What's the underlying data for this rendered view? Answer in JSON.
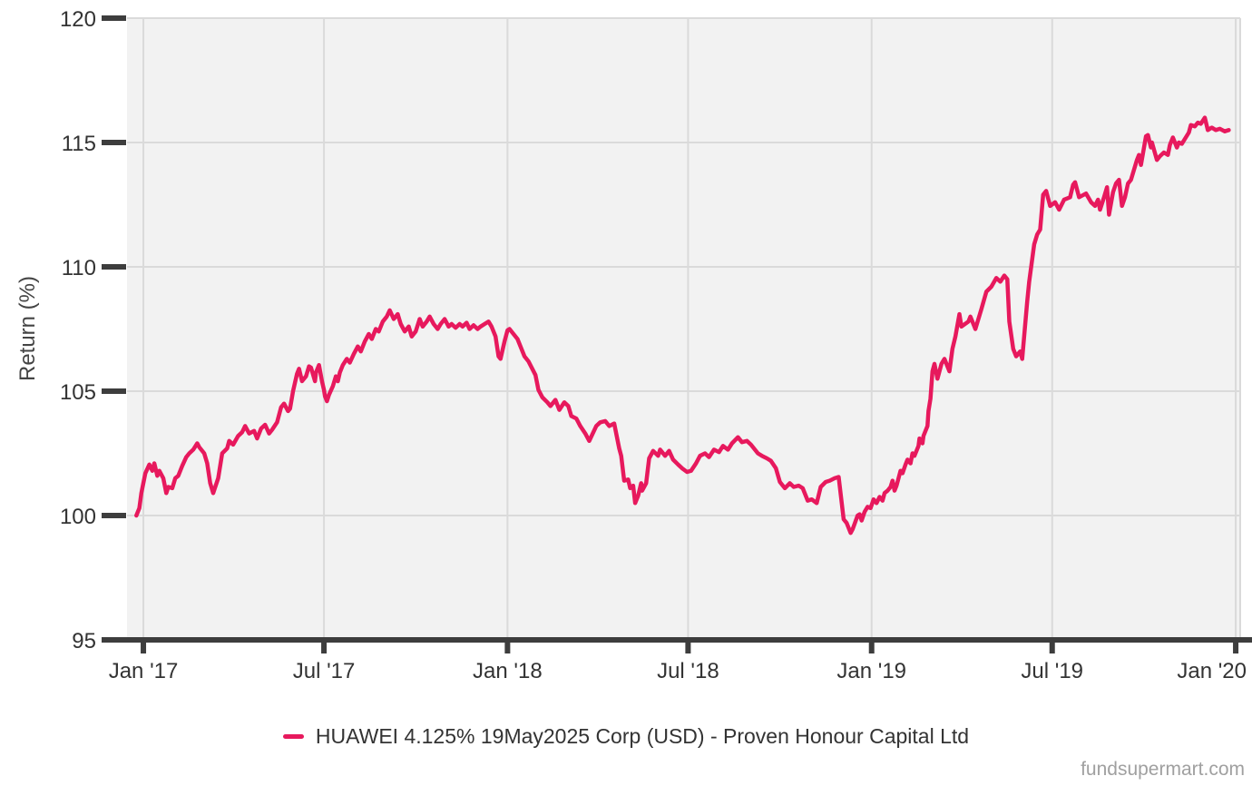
{
  "watermark": "fundsupermart.com",
  "chart_data": {
    "type": "line",
    "title": "",
    "xlabel": "",
    "ylabel": "Return (%)",
    "grid": true,
    "legend_position": "bottom-center",
    "x_unit": "days since 2017-01-01",
    "xlim_days": [
      -16.4,
      1099.5
    ],
    "ylim": [
      95,
      120
    ],
    "y_ticks": [
      95,
      100,
      105,
      110,
      115,
      120
    ],
    "x_ticks": [
      {
        "day": 0,
        "label": "Jan '17"
      },
      {
        "day": 181,
        "label": "Jul '17"
      },
      {
        "day": 365,
        "label": "Jan '18"
      },
      {
        "day": 546,
        "label": "Jul '18"
      },
      {
        "day": 730,
        "label": "Jan '19"
      },
      {
        "day": 911,
        "label": "Jul '19"
      },
      {
        "day": 1095,
        "label": "Jan '20"
      }
    ],
    "colors": {
      "line": "#e7195d",
      "plot_background": "#f2f2f2",
      "grid": "#dadada",
      "axis": "#3d3d3d",
      "tick_label": "#333333",
      "axis_title": "#444444",
      "watermark": "#a0a0a0"
    },
    "series": [
      {
        "name": "HUAWEI 4.125% 19May2025 Corp (USD) - Proven Honour Capital Ltd",
        "color": "#e7195d",
        "points": [
          [
            -7,
            100.0
          ],
          [
            -4,
            100.3
          ],
          [
            -2,
            100.9
          ],
          [
            2,
            101.7
          ],
          [
            6,
            102.05
          ],
          [
            9,
            101.8
          ],
          [
            11,
            102.1
          ],
          [
            14,
            101.6
          ],
          [
            16,
            101.8
          ],
          [
            20,
            101.5
          ],
          [
            23,
            100.9
          ],
          [
            25,
            101.15
          ],
          [
            29,
            101.1
          ],
          [
            32,
            101.5
          ],
          [
            35,
            101.6
          ],
          [
            39,
            102.0
          ],
          [
            43,
            102.35
          ],
          [
            46,
            102.5
          ],
          [
            50,
            102.65
          ],
          [
            54,
            102.9
          ],
          [
            56,
            102.75
          ],
          [
            61,
            102.5
          ],
          [
            64,
            102.1
          ],
          [
            67,
            101.3
          ],
          [
            70,
            100.9
          ],
          [
            75,
            101.5
          ],
          [
            79,
            102.5
          ],
          [
            84,
            102.7
          ],
          [
            86,
            103.0
          ],
          [
            90,
            102.85
          ],
          [
            95,
            103.2
          ],
          [
            99,
            103.35
          ],
          [
            102,
            103.6
          ],
          [
            106,
            103.3
          ],
          [
            111,
            103.4
          ],
          [
            114,
            103.1
          ],
          [
            118,
            103.5
          ],
          [
            122,
            103.65
          ],
          [
            126,
            103.3
          ],
          [
            129,
            103.45
          ],
          [
            134,
            103.75
          ],
          [
            138,
            104.35
          ],
          [
            141,
            104.5
          ],
          [
            145,
            104.2
          ],
          [
            147,
            104.3
          ],
          [
            150,
            105.0
          ],
          [
            154,
            105.7
          ],
          [
            156,
            105.9
          ],
          [
            159,
            105.4
          ],
          [
            163,
            105.6
          ],
          [
            166,
            106.0
          ],
          [
            168,
            105.95
          ],
          [
            172,
            105.4
          ],
          [
            173,
            105.75
          ],
          [
            176,
            106.05
          ],
          [
            179,
            105.4
          ],
          [
            181,
            105.05
          ],
          [
            182,
            104.8
          ],
          [
            184,
            104.6
          ],
          [
            186,
            104.85
          ],
          [
            190,
            105.2
          ],
          [
            193,
            105.6
          ],
          [
            195,
            105.4
          ],
          [
            197,
            105.75
          ],
          [
            200,
            106.05
          ],
          [
            204,
            106.3
          ],
          [
            207,
            106.15
          ],
          [
            211,
            106.5
          ],
          [
            215,
            106.8
          ],
          [
            218,
            106.6
          ],
          [
            222,
            107.0
          ],
          [
            226,
            107.3
          ],
          [
            229,
            107.1
          ],
          [
            233,
            107.5
          ],
          [
            236,
            107.4
          ],
          [
            240,
            107.8
          ],
          [
            244,
            108.0
          ],
          [
            247,
            108.25
          ],
          [
            251,
            107.9
          ],
          [
            255,
            108.1
          ],
          [
            258,
            107.7
          ],
          [
            262,
            107.4
          ],
          [
            266,
            107.6
          ],
          [
            269,
            107.2
          ],
          [
            273,
            107.4
          ],
          [
            277,
            107.9
          ],
          [
            280,
            107.6
          ],
          [
            284,
            107.8
          ],
          [
            287,
            108.0
          ],
          [
            291,
            107.7
          ],
          [
            295,
            107.5
          ],
          [
            298,
            107.7
          ],
          [
            302,
            107.9
          ],
          [
            306,
            107.6
          ],
          [
            309,
            107.7
          ],
          [
            313,
            107.55
          ],
          [
            317,
            107.7
          ],
          [
            320,
            107.6
          ],
          [
            324,
            107.75
          ],
          [
            327,
            107.5
          ],
          [
            331,
            107.65
          ],
          [
            335,
            107.5
          ],
          [
            338,
            107.6
          ],
          [
            342,
            107.7
          ],
          [
            346,
            107.8
          ],
          [
            349,
            107.6
          ],
          [
            353,
            107.2
          ],
          [
            356,
            106.4
          ],
          [
            358,
            106.3
          ],
          [
            362,
            107.0
          ],
          [
            365,
            107.45
          ],
          [
            367,
            107.5
          ],
          [
            375,
            107.1
          ],
          [
            382,
            106.4
          ],
          [
            386,
            106.2
          ],
          [
            393,
            105.65
          ],
          [
            396,
            105.05
          ],
          [
            400,
            104.75
          ],
          [
            405,
            104.55
          ],
          [
            408,
            104.4
          ],
          [
            413,
            104.65
          ],
          [
            417,
            104.25
          ],
          [
            422,
            104.55
          ],
          [
            426,
            104.4
          ],
          [
            429,
            104.0
          ],
          [
            434,
            103.9
          ],
          [
            438,
            103.6
          ],
          [
            443,
            103.3
          ],
          [
            447,
            103.0
          ],
          [
            454,
            103.6
          ],
          [
            458,
            103.75
          ],
          [
            463,
            103.8
          ],
          [
            467,
            103.6
          ],
          [
            472,
            103.7
          ],
          [
            477,
            102.7
          ],
          [
            479,
            102.4
          ],
          [
            482,
            101.4
          ],
          [
            486,
            101.45
          ],
          [
            488,
            101.1
          ],
          [
            491,
            101.2
          ],
          [
            493,
            100.5
          ],
          [
            496,
            100.8
          ],
          [
            499,
            101.3
          ],
          [
            500,
            101.0
          ],
          [
            504,
            101.3
          ],
          [
            507,
            102.3
          ],
          [
            511,
            102.6
          ],
          [
            516,
            102.4
          ],
          [
            518,
            102.65
          ],
          [
            523,
            102.4
          ],
          [
            527,
            102.6
          ],
          [
            531,
            102.25
          ],
          [
            536,
            102.05
          ],
          [
            540,
            101.9
          ],
          [
            545,
            101.75
          ],
          [
            549,
            101.8
          ],
          [
            554,
            102.1
          ],
          [
            558,
            102.4
          ],
          [
            563,
            102.5
          ],
          [
            567,
            102.35
          ],
          [
            572,
            102.65
          ],
          [
            577,
            102.55
          ],
          [
            581,
            102.8
          ],
          [
            586,
            102.65
          ],
          [
            590,
            102.9
          ],
          [
            596,
            103.15
          ],
          [
            600,
            102.95
          ],
          [
            605,
            103.0
          ],
          [
            609,
            102.85
          ],
          [
            616,
            102.5
          ],
          [
            620,
            102.4
          ],
          [
            625,
            102.3
          ],
          [
            629,
            102.2
          ],
          [
            634,
            101.9
          ],
          [
            638,
            101.35
          ],
          [
            643,
            101.1
          ],
          [
            648,
            101.3
          ],
          [
            652,
            101.15
          ],
          [
            657,
            101.2
          ],
          [
            661,
            101.1
          ],
          [
            666,
            100.6
          ],
          [
            670,
            100.65
          ],
          [
            675,
            100.5
          ],
          [
            679,
            101.15
          ],
          [
            684,
            101.35
          ],
          [
            688,
            101.4
          ],
          [
            693,
            101.5
          ],
          [
            697,
            101.55
          ],
          [
            702,
            99.85
          ],
          [
            705,
            99.7
          ],
          [
            709,
            99.3
          ],
          [
            711,
            99.45
          ],
          [
            716,
            100.0
          ],
          [
            718,
            100.05
          ],
          [
            720,
            99.8
          ],
          [
            723,
            100.15
          ],
          [
            726,
            100.35
          ],
          [
            729,
            100.3
          ],
          [
            732,
            100.65
          ],
          [
            735,
            100.5
          ],
          [
            738,
            100.75
          ],
          [
            741,
            100.6
          ],
          [
            743,
            100.9
          ],
          [
            746,
            101.0
          ],
          [
            749,
            101.15
          ],
          [
            751,
            101.4
          ],
          [
            753,
            101.0
          ],
          [
            755,
            101.2
          ],
          [
            757,
            101.5
          ],
          [
            759,
            101.8
          ],
          [
            761,
            101.7
          ],
          [
            764,
            102.05
          ],
          [
            766,
            102.25
          ],
          [
            769,
            102.1
          ],
          [
            771,
            102.5
          ],
          [
            773,
            102.4
          ],
          [
            777,
            102.8
          ],
          [
            778,
            103.1
          ],
          [
            781,
            102.9
          ],
          [
            782,
            103.2
          ],
          [
            784,
            103.4
          ],
          [
            786,
            103.6
          ],
          [
            787,
            104.2
          ],
          [
            789,
            104.7
          ],
          [
            791,
            105.8
          ],
          [
            793,
            106.1
          ],
          [
            796,
            105.5
          ],
          [
            800,
            106.1
          ],
          [
            803,
            106.3
          ],
          [
            808,
            105.8
          ],
          [
            811,
            106.7
          ],
          [
            814,
            107.2
          ],
          [
            818,
            108.1
          ],
          [
            820,
            107.6
          ],
          [
            827,
            107.8
          ],
          [
            829,
            108.0
          ],
          [
            834,
            107.5
          ],
          [
            840,
            108.3
          ],
          [
            845,
            109.0
          ],
          [
            850,
            109.2
          ],
          [
            855,
            109.55
          ],
          [
            859,
            109.4
          ],
          [
            863,
            109.65
          ],
          [
            866,
            109.5
          ],
          [
            868,
            107.8
          ],
          [
            872,
            106.7
          ],
          [
            875,
            106.4
          ],
          [
            879,
            106.6
          ],
          [
            881,
            106.3
          ],
          [
            886,
            108.6
          ],
          [
            888,
            109.4
          ],
          [
            893,
            110.9
          ],
          [
            896,
            111.3
          ],
          [
            899,
            111.5
          ],
          [
            902,
            112.9
          ],
          [
            905,
            113.05
          ],
          [
            909,
            112.45
          ],
          [
            914,
            112.6
          ],
          [
            918,
            112.3
          ],
          [
            923,
            112.7
          ],
          [
            929,
            112.8
          ],
          [
            932,
            113.3
          ],
          [
            934,
            113.4
          ],
          [
            938,
            112.8
          ],
          [
            945,
            112.95
          ],
          [
            950,
            112.6
          ],
          [
            954,
            112.45
          ],
          [
            957,
            112.7
          ],
          [
            959,
            112.3
          ],
          [
            963,
            112.8
          ],
          [
            966,
            113.2
          ],
          [
            968,
            112.1
          ],
          [
            972,
            113.0
          ],
          [
            975,
            113.35
          ],
          [
            978,
            113.5
          ],
          [
            981,
            112.45
          ],
          [
            984,
            112.8
          ],
          [
            987,
            113.35
          ],
          [
            990,
            113.5
          ],
          [
            993,
            113.9
          ],
          [
            996,
            114.3
          ],
          [
            998,
            114.5
          ],
          [
            1000,
            114.1
          ],
          [
            1005,
            115.25
          ],
          [
            1007,
            115.3
          ],
          [
            1010,
            114.8
          ],
          [
            1011,
            115.0
          ],
          [
            1016,
            114.3
          ],
          [
            1019,
            114.45
          ],
          [
            1023,
            114.6
          ],
          [
            1027,
            114.5
          ],
          [
            1029,
            114.9
          ],
          [
            1032,
            115.2
          ],
          [
            1036,
            114.8
          ],
          [
            1038,
            115.0
          ],
          [
            1041,
            114.95
          ],
          [
            1048,
            115.4
          ],
          [
            1050,
            115.7
          ],
          [
            1054,
            115.65
          ],
          [
            1057,
            115.8
          ],
          [
            1060,
            115.75
          ],
          [
            1064,
            116.0
          ],
          [
            1067,
            115.5
          ],
          [
            1071,
            115.6
          ],
          [
            1075,
            115.5
          ],
          [
            1079,
            115.55
          ],
          [
            1084,
            115.45
          ],
          [
            1088,
            115.5
          ]
        ]
      }
    ]
  }
}
